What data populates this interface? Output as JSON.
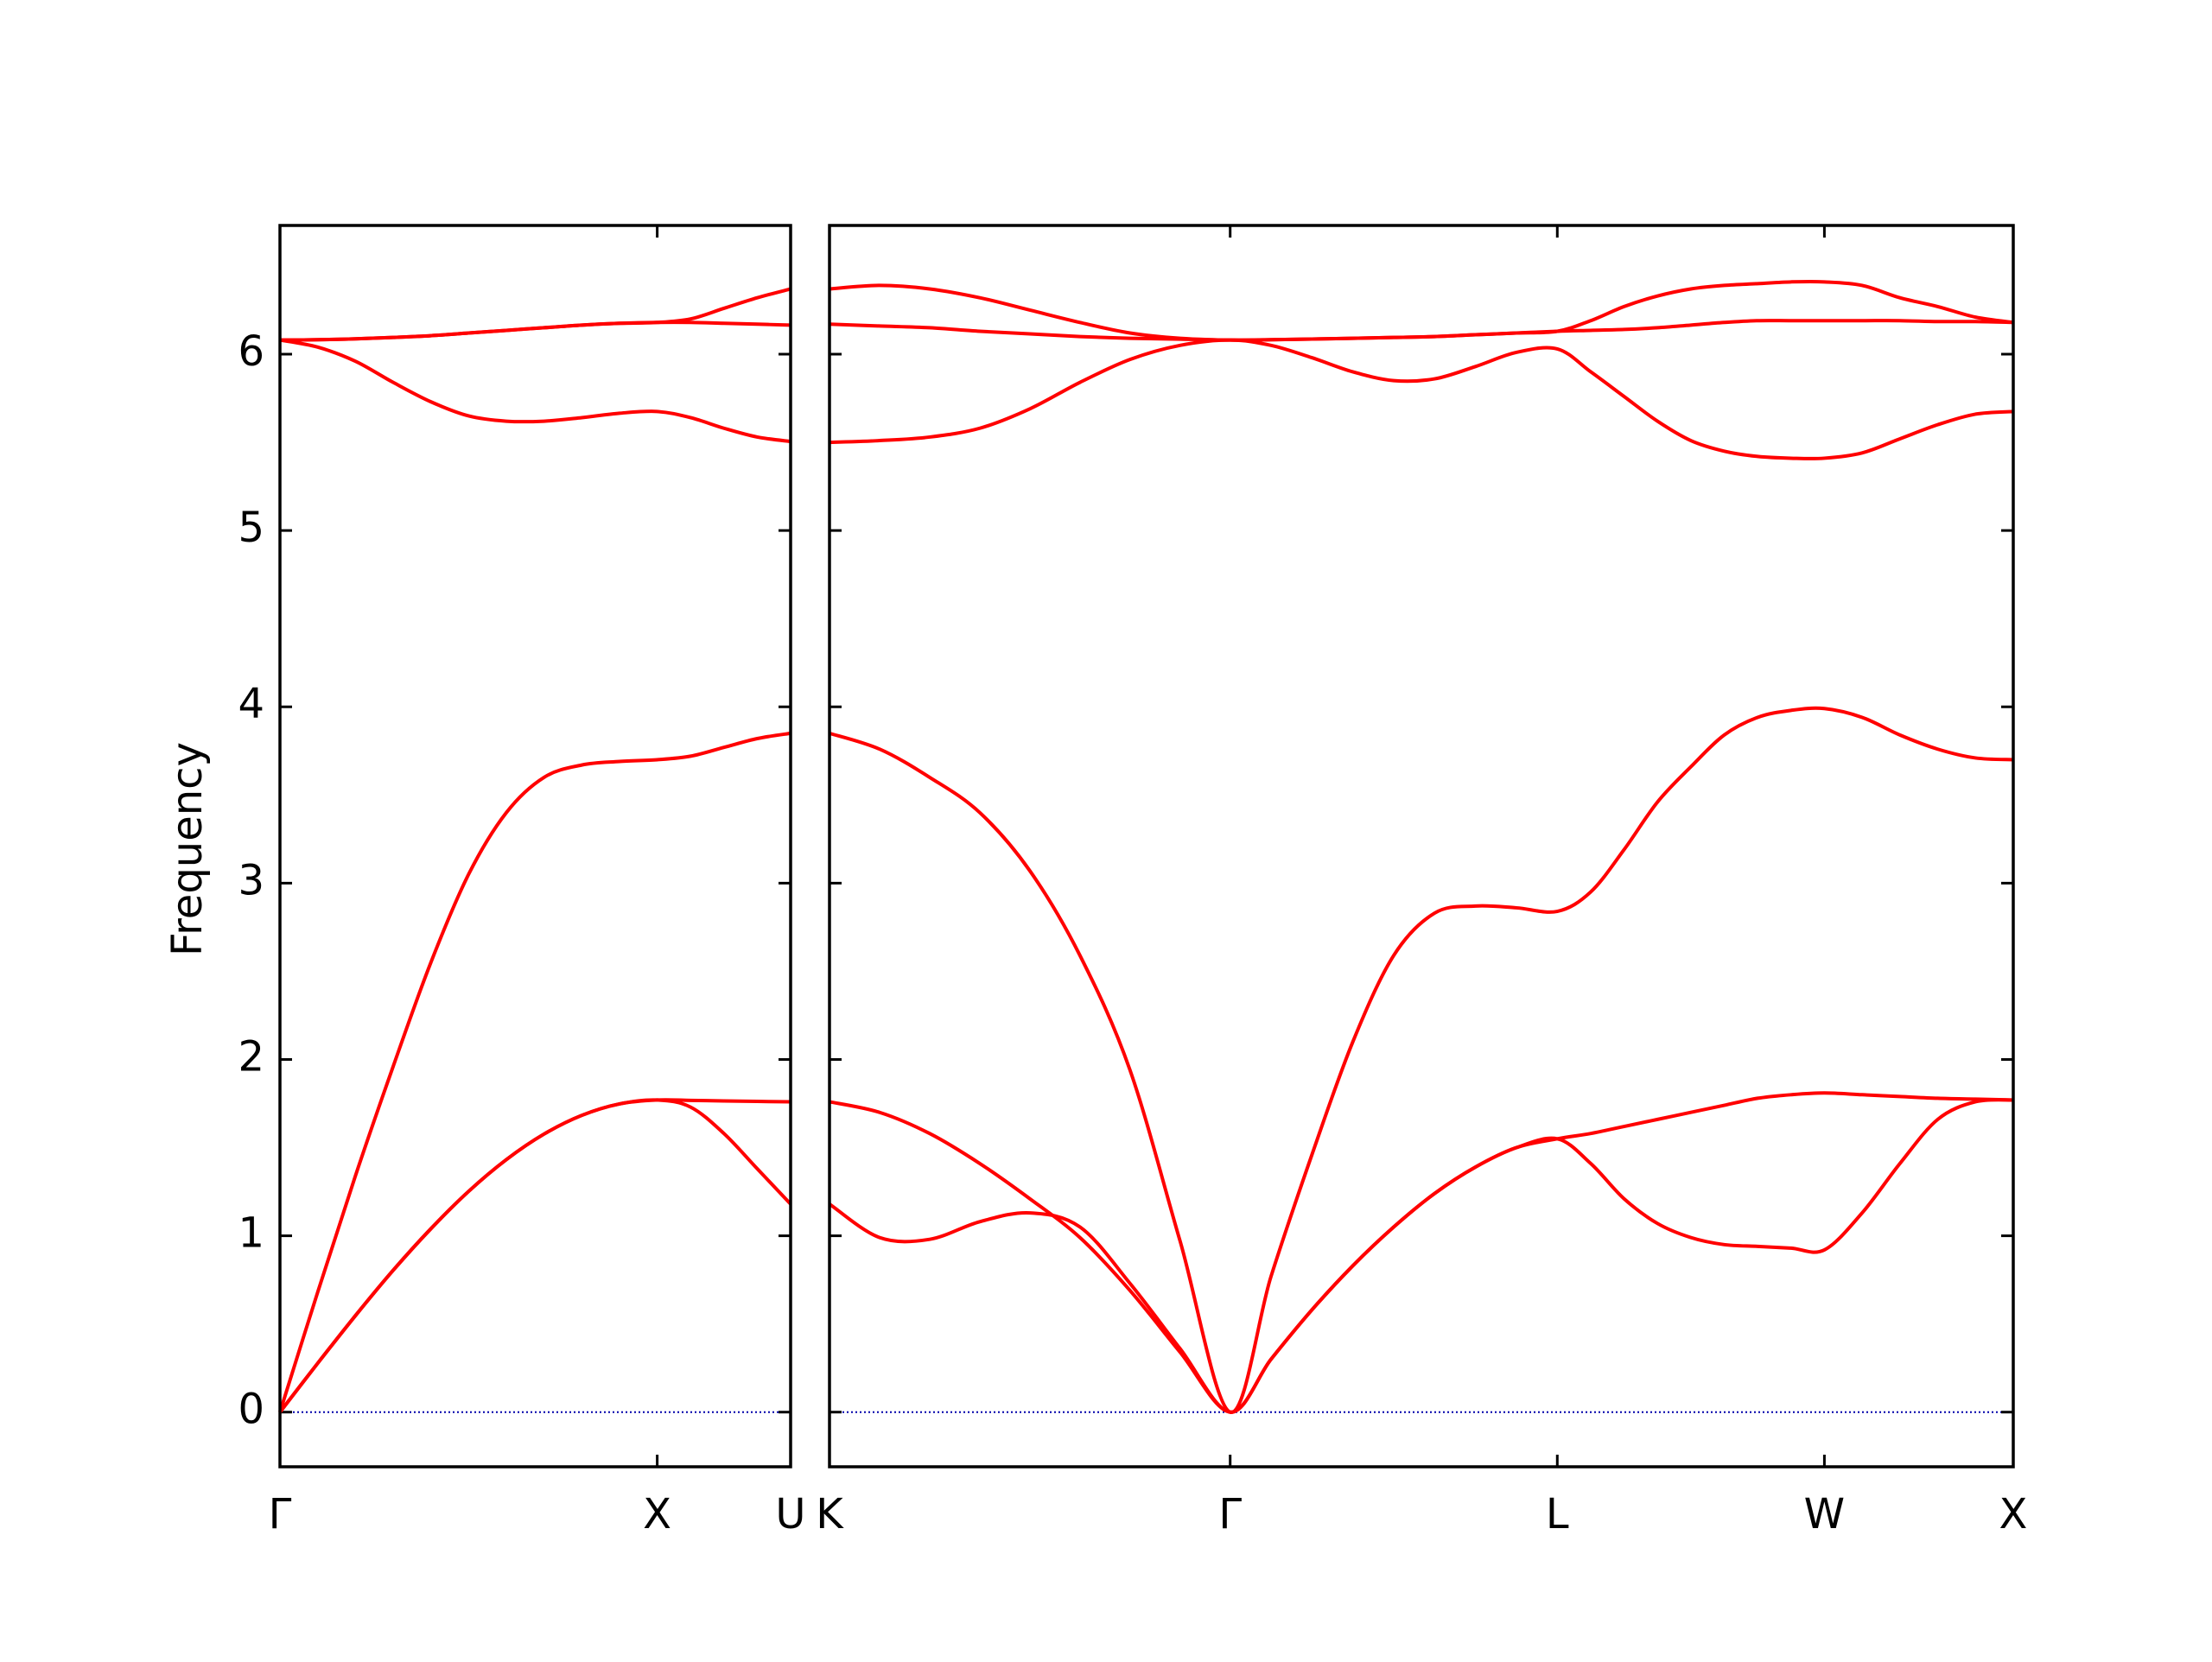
{
  "chart_data": [
    {
      "type": "line",
      "ylabel": "Frequency",
      "x": [
        0,
        0.1,
        0.2,
        0.3,
        0.4,
        0.5,
        0.6,
        0.7,
        0.8,
        0.9,
        1,
        1.0884,
        1.1768,
        1.2652,
        1.3536
      ],
      "xlim": [
        0,
        1.3536
      ],
      "xticks": [
        {
          "value": 0,
          "label": "Γ"
        },
        {
          "value": 1,
          "label": "X"
        },
        {
          "value": 1.3536,
          "label": "U"
        }
      ],
      "ylim": [
        -0.31,
        6.73
      ],
      "yticks": [
        0,
        1,
        2,
        3,
        4,
        5,
        6
      ],
      "ytick_labels": true,
      "hlines": [
        {
          "y": 0,
          "color": "#0000aa",
          "style": "dotted"
        }
      ],
      "series": [
        {
          "color": "#ff0000",
          "values": [
            0,
            0.277,
            0.547,
            0.804,
            1.04,
            1.252,
            1.432,
            1.577,
            1.683,
            1.748,
            1.77,
            1.73,
            1.58,
            1.38,
            1.18
          ]
        },
        {
          "color": "#ff0000",
          "values": [
            0,
            0.277,
            0.547,
            0.804,
            1.04,
            1.252,
            1.432,
            1.577,
            1.683,
            1.748,
            1.77,
            1.768,
            1.765,
            1.762,
            1.76
          ]
        },
        {
          "color": "#ff0000",
          "values": [
            0,
            0.68,
            1.34,
            1.96,
            2.55,
            3.05,
            3.4,
            3.6,
            3.67,
            3.69,
            3.7,
            3.72,
            3.77,
            3.82,
            3.85
          ]
        },
        {
          "color": "#ff0000",
          "values": [
            6.08,
            6.04,
            5.96,
            5.84,
            5.73,
            5.65,
            5.62,
            5.62,
            5.64,
            5.665,
            5.675,
            5.64,
            5.58,
            5.53,
            5.505
          ]
        },
        {
          "color": "#ff0000",
          "values": [
            6.08,
            6.082,
            6.087,
            6.095,
            6.105,
            6.12,
            6.135,
            6.15,
            6.165,
            6.175,
            6.18,
            6.18,
            6.175,
            6.17,
            6.165
          ]
        },
        {
          "color": "#ff0000",
          "values": [
            6.08,
            6.082,
            6.087,
            6.095,
            6.105,
            6.12,
            6.135,
            6.15,
            6.165,
            6.175,
            6.18,
            6.2,
            6.26,
            6.32,
            6.37
          ]
        }
      ]
    },
    {
      "type": "line",
      "x": [
        0,
        0.1326,
        0.2652,
        0.3978,
        0.5304,
        0.663,
        0.7955,
        0.9281,
        1.0607,
        1.1689,
        1.2772,
        1.3854,
        1.4937,
        1.6019,
        1.7102,
        1.8184,
        1.9267,
        2.0151,
        2.1035,
        2.1919,
        2.2803,
        2.3686,
        2.457,
        2.5454,
        2.6338,
        2.7338,
        2.8338,
        2.9338,
        3.0338,
        3.1338
      ],
      "xlim": [
        0,
        3.1338
      ],
      "xticks": [
        {
          "value": 0,
          "label": "K"
        },
        {
          "value": 1.0607,
          "label": "Γ"
        },
        {
          "value": 1.9267,
          "label": "L"
        },
        {
          "value": 2.6338,
          "label": "W"
        },
        {
          "value": 3.1338,
          "label": "X"
        }
      ],
      "ylim": [
        -0.31,
        6.73
      ],
      "yticks": [
        0,
        1,
        2,
        3,
        4,
        5,
        6
      ],
      "ytick_labels": false,
      "hlines": [
        {
          "y": 0,
          "color": "#0000aa",
          "style": "dotted"
        }
      ],
      "series": [
        {
          "color": "#ff0000",
          "values": [
            1.18,
            0.99,
            0.98,
            1.08,
            1.13,
            1.05,
            0.73,
            0.36,
            0,
            0.3,
            0.58,
            0.83,
            1.05,
            1.24,
            1.39,
            1.5,
            1.55,
            1.41,
            1.21,
            1.07,
            0.99,
            0.95,
            0.94,
            0.93,
            0.92,
            1.13,
            1.41,
            1.66,
            1.76,
            1.77
          ]
        },
        {
          "color": "#ff0000",
          "values": [
            1.76,
            1.7,
            1.58,
            1.41,
            1.21,
            0.99,
            0.69,
            0.34,
            0,
            0.3,
            0.58,
            0.83,
            1.05,
            1.24,
            1.39,
            1.5,
            1.55,
            1.58,
            1.62,
            1.66,
            1.7,
            1.74,
            1.78,
            1.8,
            1.81,
            1.8,
            1.79,
            1.78,
            1.775,
            1.77
          ]
        },
        {
          "color": "#ff0000",
          "values": [
            3.85,
            3.76,
            3.6,
            3.4,
            3.07,
            2.59,
            1.94,
            0.97,
            0,
            0.77,
            1.46,
            2.1,
            2.59,
            2.83,
            2.87,
            2.86,
            2.84,
            2.95,
            3.19,
            3.46,
            3.66,
            3.84,
            3.94,
            3.98,
            3.99,
            3.94,
            3.84,
            3.76,
            3.71,
            3.7
          ]
        },
        {
          "color": "#ff0000",
          "values": [
            5.5,
            5.51,
            5.53,
            5.58,
            5.69,
            5.84,
            5.97,
            6.05,
            6.08,
            6.05,
            5.98,
            5.9,
            5.85,
            5.86,
            5.93,
            6.01,
            6.03,
            5.9,
            5.76,
            5.62,
            5.51,
            5.45,
            5.42,
            5.41,
            5.41,
            5.44,
            5.52,
            5.6,
            5.66,
            5.675
          ]
        },
        {
          "color": "#ff0000",
          "values": [
            6.17,
            6.16,
            6.15,
            6.13,
            6.115,
            6.1,
            6.09,
            6.085,
            6.08,
            6.082,
            6.086,
            6.09,
            6.095,
            6.1,
            6.11,
            6.12,
            6.13,
            6.135,
            6.14,
            6.15,
            6.165,
            6.18,
            6.19,
            6.19,
            6.19,
            6.19,
            6.19,
            6.185,
            6.185,
            6.18
          ]
        },
        {
          "color": "#ff0000",
          "values": [
            6.37,
            6.39,
            6.37,
            6.32,
            6.25,
            6.18,
            6.12,
            6.09,
            6.08,
            6.082,
            6.086,
            6.09,
            6.095,
            6.1,
            6.11,
            6.12,
            6.13,
            6.19,
            6.27,
            6.33,
            6.37,
            6.39,
            6.4,
            6.41,
            6.41,
            6.39,
            6.32,
            6.27,
            6.21,
            6.18
          ]
        }
      ]
    }
  ]
}
